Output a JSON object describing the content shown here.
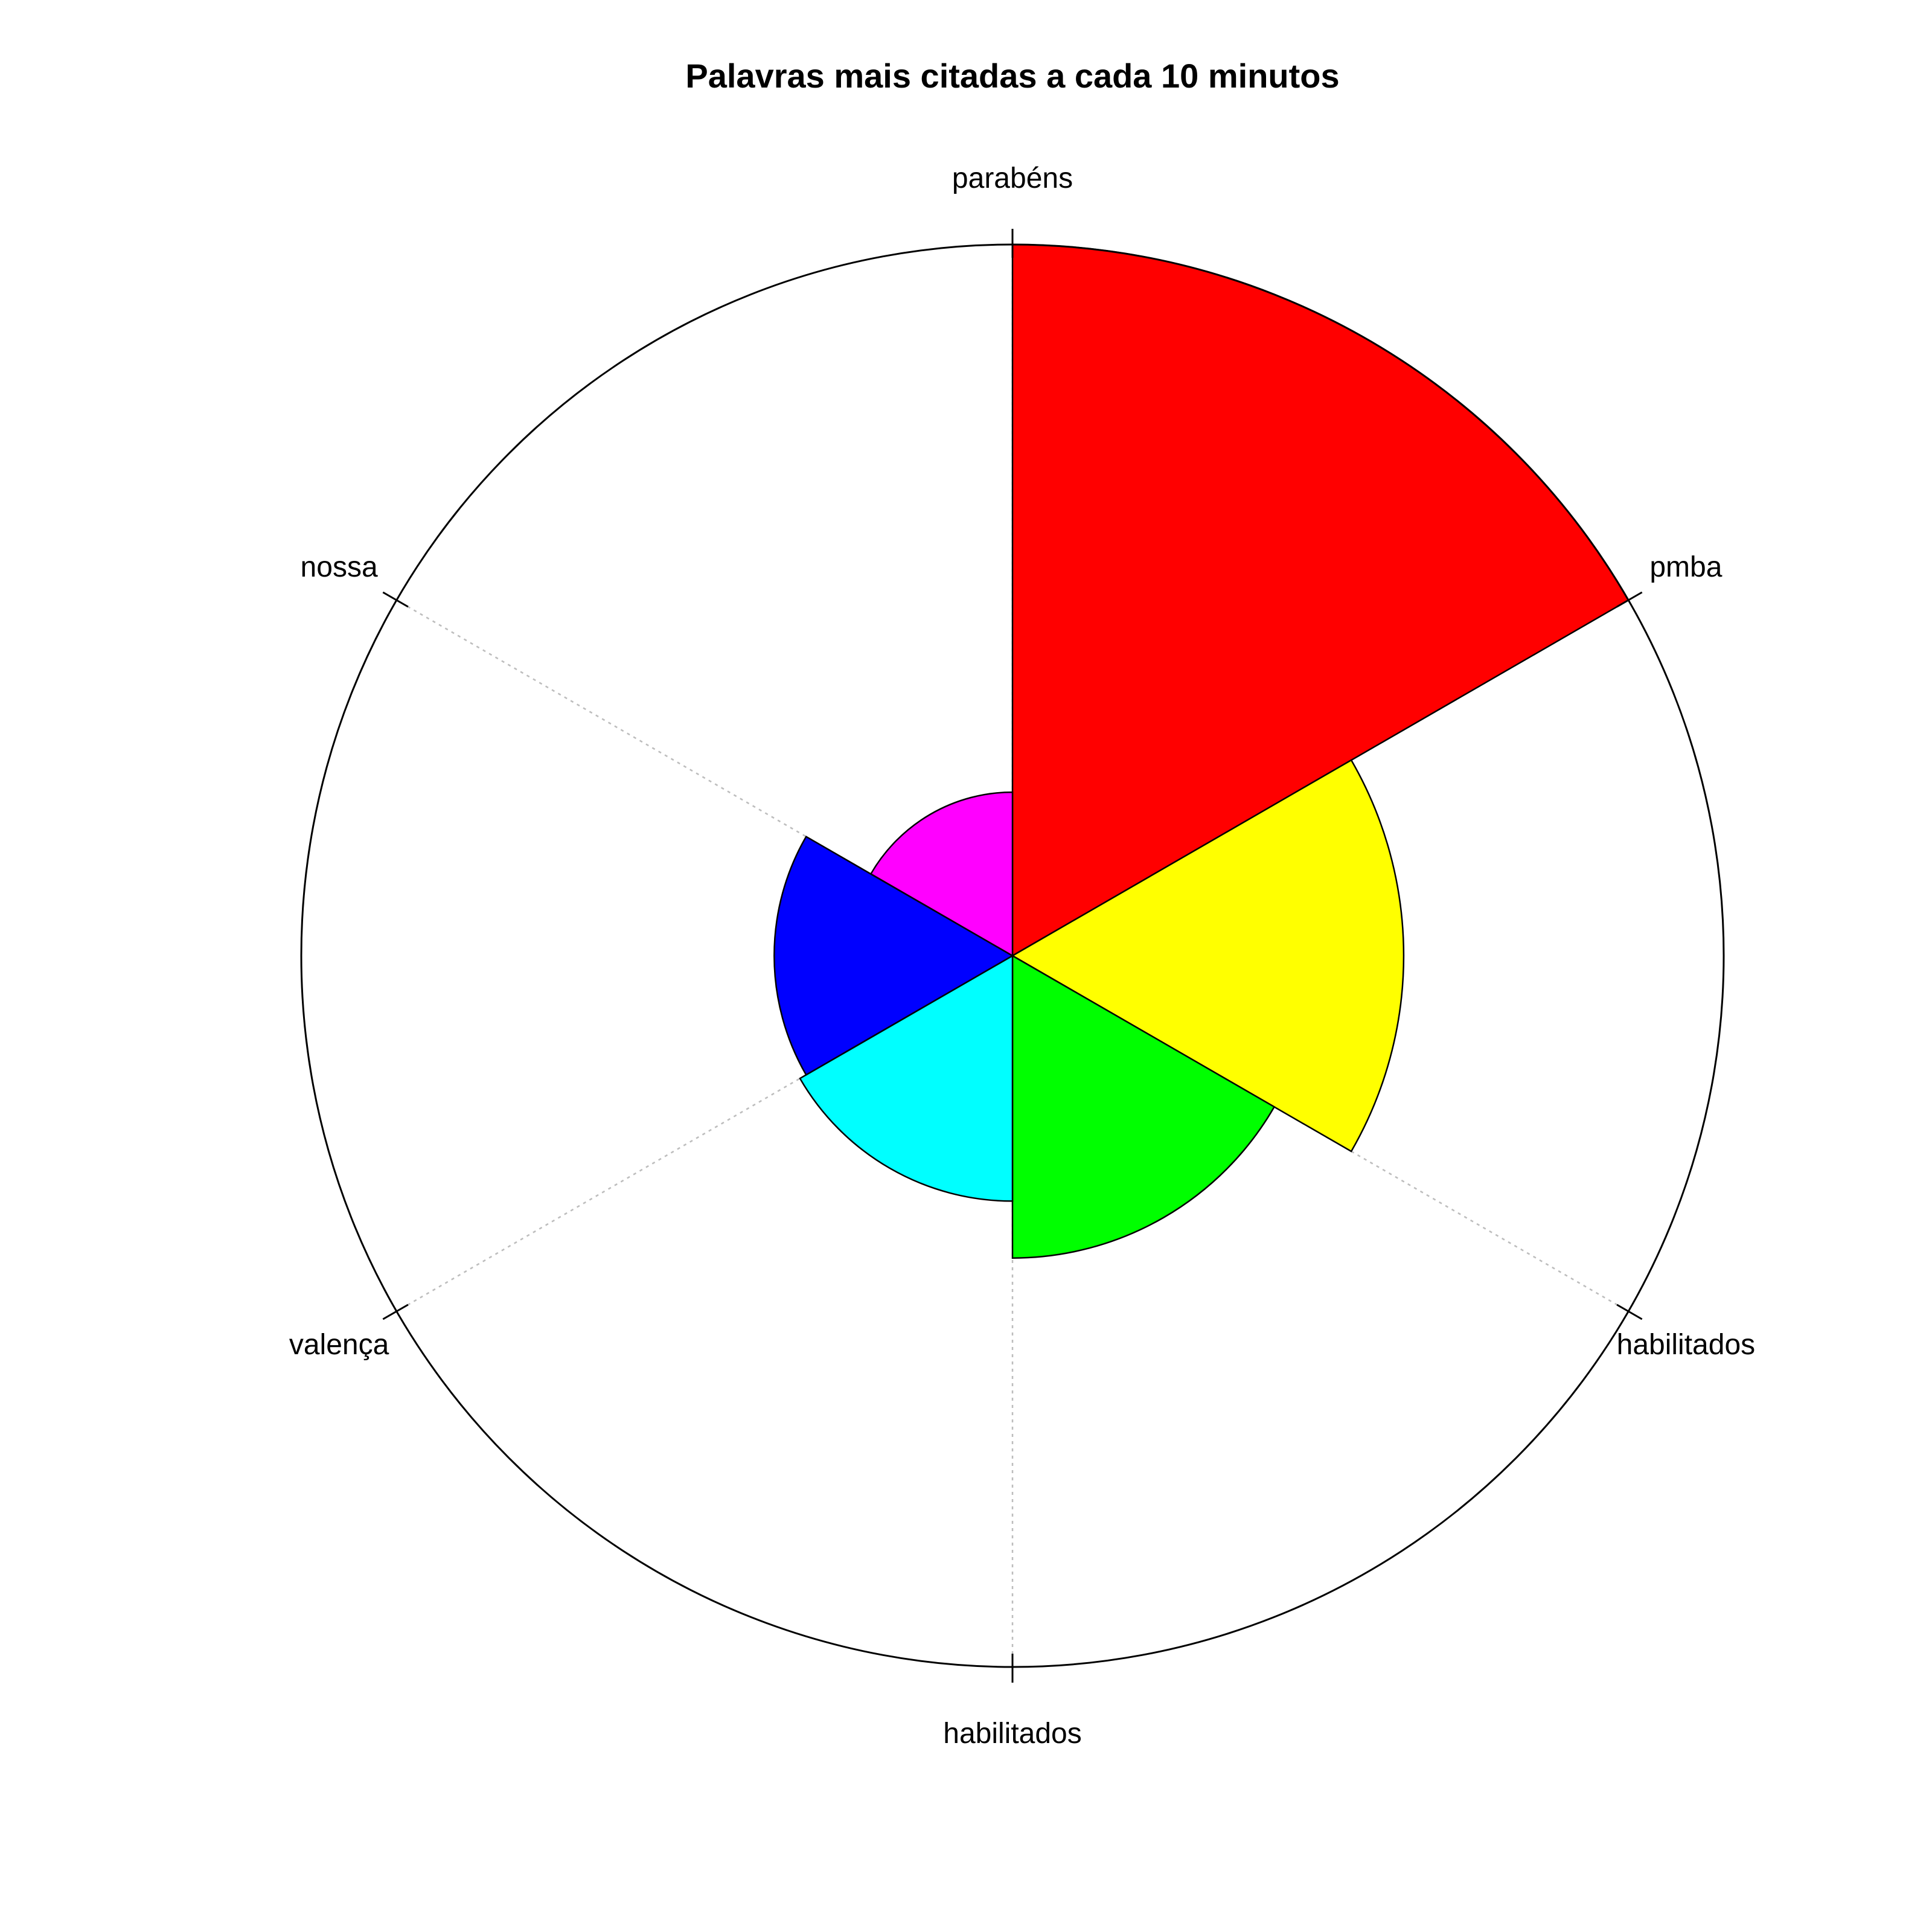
{
  "chart_data": {
    "type": "polar-bar",
    "title": "Palavras mais citadas a cada 10 minutos",
    "categories": [
      "parabéns",
      "pmba",
      "habilitados",
      "habilitados",
      "valença",
      "nossa"
    ],
    "values": [
      100,
      55,
      42.5,
      34.5,
      33.5,
      23
    ],
    "colors": [
      "#ff0000",
      "#ffff00",
      "#00ff00",
      "#00ffff",
      "#0000ff",
      "#ff00ff"
    ],
    "rlim": [
      0,
      100
    ],
    "start_angle_deg": 90,
    "direction": "clockwise",
    "grid": true
  }
}
